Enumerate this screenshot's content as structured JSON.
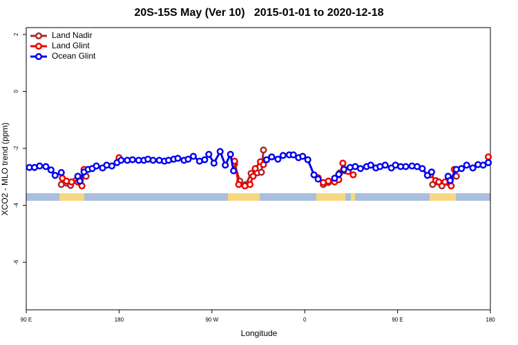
{
  "chart_data": {
    "type": "line",
    "title": "20S-15S May (Ver 10)   2015-01-01 to 2020-12-18",
    "x_label": "Longitude",
    "y_label": "XCO2 - MLO trend (ppm)",
    "xlim": [
      90,
      540
    ],
    "ylim": [
      -7.67,
      2.24
    ],
    "xticks": [
      {
        "value": 90,
        "label": "90 E"
      },
      180,
      {
        "value": 270,
        "label": "90 W"
      },
      {
        "value": 360,
        "label": "0"
      },
      {
        "value": 450,
        "label": "90 E"
      },
      {
        "value": 540,
        "label": "180"
      }
    ],
    "yticks": [
      2,
      0,
      -2,
      -4,
      -6
    ],
    "legend": "top-left",
    "series": [
      {
        "name": "Land Nadir",
        "color": "#a52a2a",
        "x": [
          124,
          129,
          133,
          138,
          142,
          148,
          null,
          292,
          297,
          303,
          308,
          314,
          318,
          320,
          null,
          378,
          383,
          389,
          394,
          399,
          null,
          484,
          489,
          493,
          499,
          501,
          507
        ],
        "values": [
          -3.27,
          -3.22,
          -3.3,
          -3.13,
          -3.03,
          -2.98,
          null,
          -2.55,
          -3.15,
          -3.27,
          -2.88,
          -2.86,
          -2.84,
          -2.06,
          null,
          -3.27,
          -3.2,
          -3.13,
          -2.86,
          -2.79,
          null,
          -3.27,
          -3.18,
          -3.32,
          -3.2,
          -3.15,
          -2.98
        ]
      },
      {
        "name": "Land Glint",
        "color": "#ee0000",
        "x": [
          125,
          129,
          134,
          140,
          144,
          146,
          null,
          180,
          null,
          292,
          296,
          302,
          307,
          310,
          312,
          317,
          320,
          null,
          373,
          378,
          383,
          389,
          393,
          397,
          402,
          407,
          null,
          482,
          487,
          490,
          496,
          502,
          505,
          null,
          538
        ],
        "values": [
          -3.05,
          -3.15,
          -3.18,
          -3.18,
          -3.32,
          -2.74,
          null,
          -2.33,
          null,
          -2.45,
          -3.27,
          -3.32,
          -3.27,
          -2.98,
          -2.71,
          -2.47,
          -2.57,
          null,
          -3.03,
          -3.2,
          -3.15,
          -3.18,
          -3.1,
          -2.52,
          -2.81,
          -2.93,
          null,
          -2.93,
          -3.13,
          -3.18,
          -3.18,
          -3.32,
          -2.74,
          null,
          -2.3
        ]
      },
      {
        "name": "Ocean Glint",
        "color": "#0000ee",
        "x": [
          93,
          98,
          103,
          109,
          114,
          118,
          124,
          null,
          140,
          142,
          146,
          150,
          154,
          158,
          164,
          168,
          173,
          178,
          182,
          188,
          193,
          199,
          204,
          208,
          213,
          219,
          224,
          228,
          233,
          237,
          243,
          247,
          252,
          258,
          263,
          267,
          272,
          278,
          283,
          288,
          291,
          null,
          323,
          328,
          334,
          339,
          345,
          349,
          354,
          358,
          363,
          369,
          373,
          null,
          389,
          393,
          398,
          404,
          409,
          414,
          420,
          424,
          429,
          433,
          438,
          444,
          448,
          453,
          458,
          464,
          469,
          474,
          479,
          483,
          null,
          499,
          501,
          507,
          512,
          517,
          523,
          528,
          533,
          538
        ],
        "values": [
          -2.67,
          -2.67,
          -2.62,
          -2.64,
          -2.76,
          -2.95,
          -2.85,
          null,
          -2.98,
          -3.15,
          -2.83,
          -2.74,
          -2.71,
          -2.62,
          -2.69,
          -2.59,
          -2.62,
          -2.5,
          -2.42,
          -2.42,
          -2.4,
          -2.42,
          -2.42,
          -2.38,
          -2.42,
          -2.42,
          -2.45,
          -2.42,
          -2.38,
          -2.35,
          -2.42,
          -2.38,
          -2.28,
          -2.45,
          -2.4,
          -2.21,
          -2.52,
          -2.11,
          -2.59,
          -2.21,
          -2.79,
          null,
          -2.4,
          -2.3,
          -2.38,
          -2.25,
          -2.23,
          -2.23,
          -2.33,
          -2.28,
          -2.4,
          -2.93,
          -3.08,
          null,
          -3.05,
          -2.91,
          -2.74,
          -2.67,
          -2.64,
          -2.71,
          -2.64,
          -2.59,
          -2.69,
          -2.64,
          -2.59,
          -2.69,
          -2.59,
          -2.64,
          -2.64,
          -2.62,
          -2.64,
          -2.71,
          -2.95,
          -2.83,
          null,
          -2.98,
          -3.13,
          -2.74,
          -2.71,
          -2.59,
          -2.69,
          -2.57,
          -2.59,
          -2.5
        ]
      }
    ]
  }
}
